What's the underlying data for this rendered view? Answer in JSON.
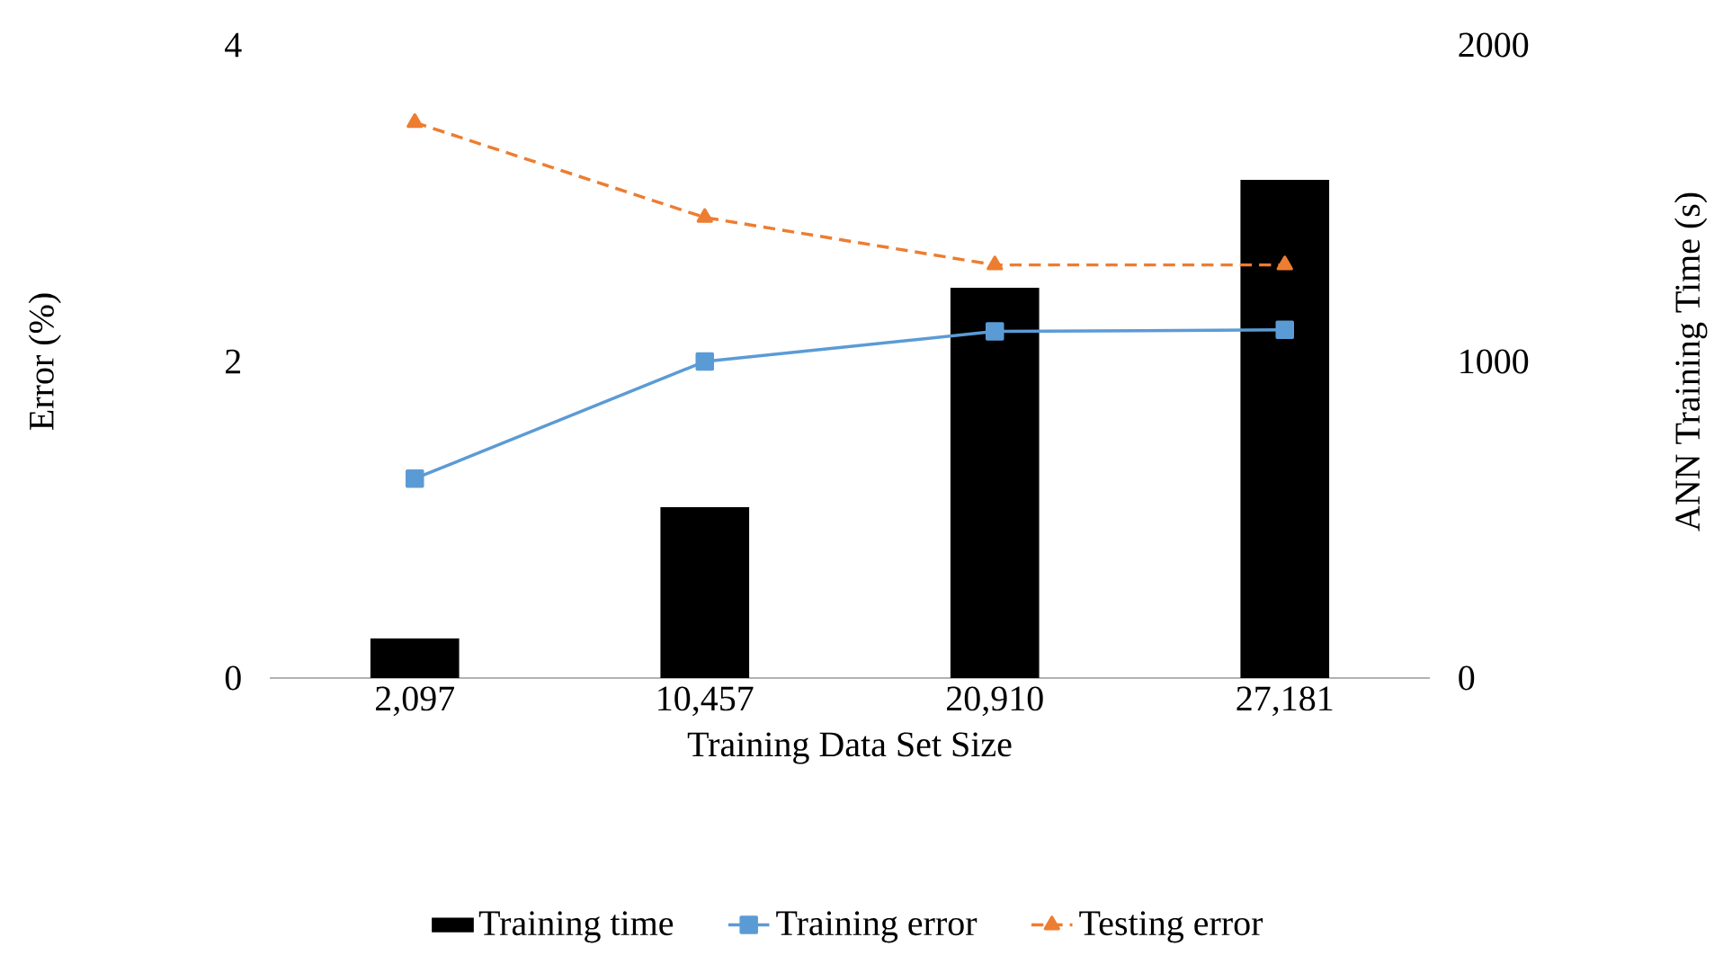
{
  "chart_data": {
    "type": "bar",
    "xlabel": "Training Data Set Size",
    "ylabel": "Error (%)",
    "y2label": "ANN Training Time (s)",
    "categories": [
      "2,097",
      "10,457",
      "20,910",
      "27,181"
    ],
    "ylim": [
      0,
      4
    ],
    "yticks": [
      0,
      2,
      4
    ],
    "y2lim": [
      0,
      2000
    ],
    "y2ticks": [
      0,
      1000,
      2000
    ],
    "legend": "bottom",
    "series": [
      {
        "name": "Training time",
        "axis": "y2",
        "color": "#000000",
        "values": [
          125,
          540,
          1233,
          1574
        ]
      },
      {
        "name": "Training error",
        "type": "line",
        "marker": "square",
        "line_style": "solid",
        "color": "#5b9bd5",
        "values": [
          1.26,
          2.0,
          2.19,
          2.2
        ]
      },
      {
        "name": "Testing error",
        "type": "line",
        "marker": "triangle",
        "line_style": "dashed",
        "color": "#ed7d31",
        "values": [
          3.51,
          2.91,
          2.61,
          2.61
        ]
      }
    ]
  }
}
